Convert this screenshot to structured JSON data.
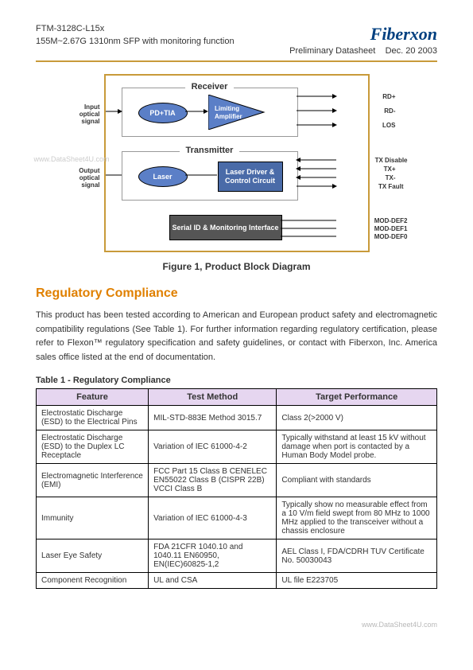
{
  "header": {
    "model": "FTM-3128C-L15x",
    "description": "155M~2.67G 1310nm SFP with monitoring function",
    "docType": "Preliminary Datasheet",
    "date": "Dec. 20 2003",
    "logo": "Fiberxon"
  },
  "watermark": "www.DataSheet4U.com",
  "diagram": {
    "receiverLabel": "Receiver",
    "transmitterLabel": "Transmitter",
    "pdtia": "PD+TIA",
    "limamp": "Limiting Amplifier",
    "laser": "Laser",
    "driver": "Laser Driver & Control Circuit",
    "serial": "Serial ID & Monitoring Interface",
    "inputLabel": "Input optical signal",
    "outputLabel": "Output optical signal",
    "pins_rx": [
      "RD+",
      "RD-",
      "LOS"
    ],
    "pins_tx": [
      "TX Disable",
      "TX+",
      "TX-",
      "TX Fault"
    ],
    "pins_mod": [
      "MOD-DEF2",
      "MOD-DEF1",
      "MOD-DEF0"
    ],
    "caption": "Figure 1, Product Block Diagram",
    "colors": {
      "border": "#c89a3a",
      "oval": "#5b7fc7",
      "box": "#4a6ba8",
      "serial_box": "#555"
    }
  },
  "section": {
    "title": "Regulatory Compliance",
    "paragraph": "This product has been tested according to American and European product safety and electromagnetic compatibility regulations (See Table 1). For further information regarding regulatory certification, please refer to Flexon™ regulatory specification and safety guidelines, or contact with Fiberxon, Inc. America sales office listed at the end of documentation."
  },
  "table": {
    "caption": "Table 1 - Regulatory Compliance",
    "headers": [
      "Feature",
      "Test Method",
      "Target Performance"
    ],
    "rows": [
      [
        "Electrostatic Discharge (ESD) to the Electrical Pins",
        "MIL-STD-883E Method 3015.7",
        "Class 2(>2000 V)"
      ],
      [
        "Electrostatic Discharge (ESD) to the Duplex LC Receptacle",
        "Variation of IEC 61000-4-2",
        "Typically withstand at least 15 kV without damage when port is contacted by a Human Body Model probe."
      ],
      [
        "Electromagnetic Interference (EMI)",
        "FCC Part 15 Class B CENELEC EN55022 Class B (CISPR 22B) VCCI Class B",
        "Compliant with standards"
      ],
      [
        "Immunity",
        "Variation of IEC 61000-4-3",
        "Typically show no measurable effect from a 10 V/m field swept from 80 MHz to 1000 MHz applied to the transceiver without a chassis enclosure"
      ],
      [
        "Laser Eye Safety",
        "FDA 21CFR 1040.10 and 1040.11 EN60950, EN(IEC)60825-1,2",
        "AEL Class I, FDA/CDRH TUV Certificate No. 50030043"
      ],
      [
        "Component Recognition",
        "UL and CSA",
        "UL file E223705"
      ]
    ],
    "widths": [
      "28%",
      "32%",
      "40%"
    ]
  },
  "footer": "www.DataSheet4U.com"
}
